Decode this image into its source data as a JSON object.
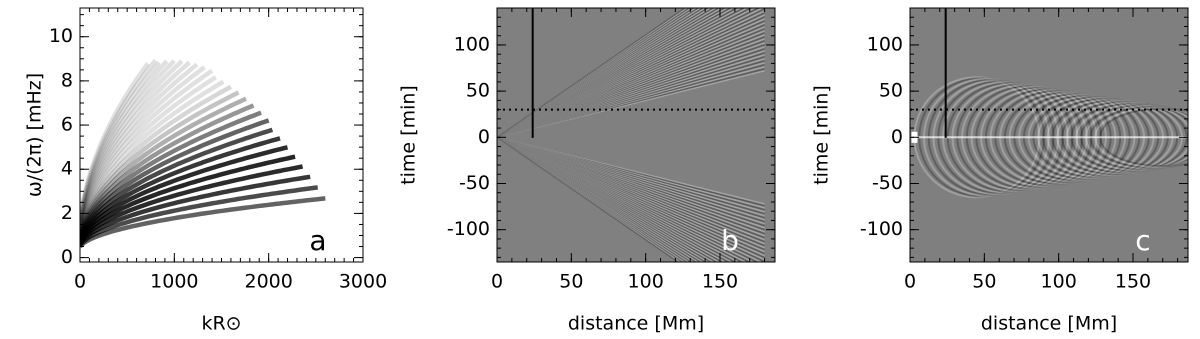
{
  "chart_data": [
    {
      "type": "image",
      "panel_label": "a",
      "xlabel": "kR⊙",
      "ylabel": "ω/(2π) [mHz]",
      "xlim": [
        0,
        3000
      ],
      "xticks": [
        0,
        1000,
        2000,
        3000
      ],
      "ylim": [
        -0.2,
        11.3
      ],
      "yticks": [
        0,
        2,
        4,
        6,
        8,
        10
      ]
    },
    {
      "type": "image",
      "panel_label": "b",
      "xlabel": "distance [Mm]",
      "ylabel": "time [min]",
      "xlim": [
        0,
        187
      ],
      "xticks": [
        0,
        50,
        100,
        150
      ],
      "ylim": [
        -135,
        140
      ],
      "yticks": [
        -100,
        -50,
        0,
        50,
        100
      ],
      "vline_x": 24,
      "vline_ymin": 0,
      "hline_y": 30
    },
    {
      "type": "image",
      "panel_label": "c",
      "xlabel": "distance [Mm]",
      "ylabel": "time [min]",
      "xlim": [
        0,
        187
      ],
      "xticks": [
        0,
        50,
        100,
        150
      ],
      "ylim": [
        -135,
        140
      ],
      "yticks": [
        -100,
        -50,
        0,
        50,
        100
      ],
      "vline_x": 24,
      "vline_ymin": 0,
      "hline_y": 30
    }
  ]
}
